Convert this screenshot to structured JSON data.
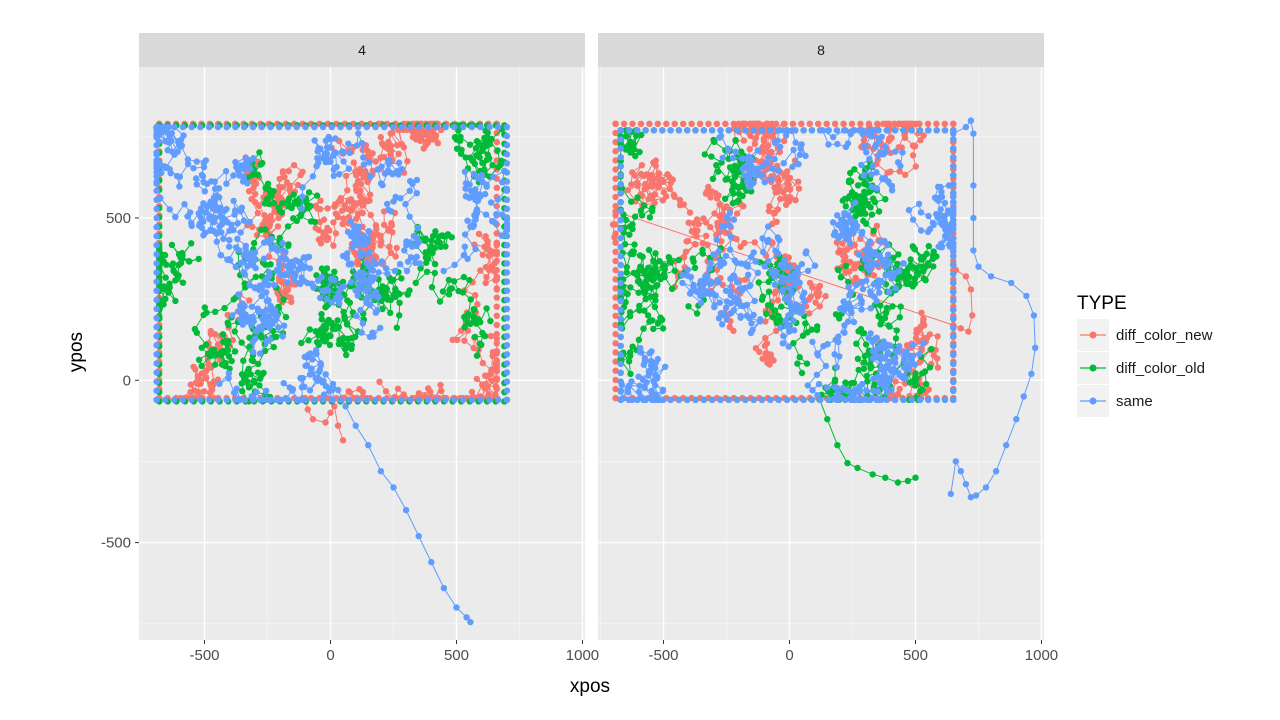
{
  "chart_data": {
    "type": "scatter",
    "xlabel": "xpos",
    "ylabel": "ypos",
    "xlim": [
      -760,
      1010
    ],
    "ylim": [
      -800,
      965
    ],
    "x_ticks": [
      -500,
      0,
      500,
      1000
    ],
    "y_ticks": [
      -500,
      0,
      500
    ],
    "grid": true,
    "legend_title": "TYPE",
    "legend_position": "right",
    "series_colors": {
      "diff_color_new": "#F8766D",
      "diff_color_old": "#00BA38",
      "same": "#619CFF"
    },
    "series_order": [
      "diff_color_new",
      "diff_color_old",
      "same"
    ],
    "panels": [
      {
        "label": "4",
        "series": [
          {
            "name": "diff_color_new",
            "bounding_region": {
              "x": [
                -680,
                660
              ],
              "y": [
                -55,
                790
              ]
            },
            "extra_points": [
              [
                -100,
                -55
              ],
              [
                -90,
                -90
              ],
              [
                -70,
                -120
              ],
              [
                -20,
                -130
              ],
              [
                0,
                -100
              ],
              [
                15,
                -80
              ],
              [
                30,
                -140
              ],
              [
                50,
                -185
              ]
            ]
          },
          {
            "name": "diff_color_old",
            "bounding_region": {
              "x": [
                -680,
                690
              ],
              "y": [
                -65,
                785
              ]
            },
            "extra_points": []
          },
          {
            "name": "same",
            "bounding_region": {
              "x": [
                -690,
                700
              ],
              "y": [
                -60,
                780
              ]
            },
            "extra_points": [
              [
                30,
                -30
              ],
              [
                60,
                -80
              ],
              [
                100,
                -140
              ],
              [
                150,
                -200
              ],
              [
                200,
                -280
              ],
              [
                250,
                -330
              ],
              [
                300,
                -400
              ],
              [
                350,
                -480
              ],
              [
                400,
                -560
              ],
              [
                450,
                -640
              ],
              [
                500,
                -700
              ],
              [
                540,
                -730
              ],
              [
                555,
                -745
              ]
            ]
          }
        ]
      },
      {
        "label": "8",
        "series": [
          {
            "name": "diff_color_new",
            "bounding_region": {
              "x": [
                -690,
                650
              ],
              "y": [
                -55,
                790
              ]
            },
            "extra_points": [
              [
                660,
                340
              ],
              [
                700,
                320
              ],
              [
                720,
                280
              ],
              [
                725,
                200
              ],
              [
                710,
                150
              ],
              [
                680,
                160
              ],
              [
                650,
                170
              ],
              [
                -690,
                520
              ],
              [
                -700,
                480
              ],
              [
                -695,
                440
              ]
            ]
          },
          {
            "name": "diff_color_old",
            "bounding_region": {
              "x": [
                -670,
                650
              ],
              "y": [
                -60,
                770
              ]
            },
            "extra_points": [
              [
                120,
                -60
              ],
              [
                150,
                -120
              ],
              [
                190,
                -200
              ],
              [
                230,
                -255
              ],
              [
                270,
                -270
              ],
              [
                330,
                -290
              ],
              [
                380,
                -300
              ],
              [
                430,
                -315
              ],
              [
                470,
                -310
              ],
              [
                500,
                -300
              ]
            ]
          },
          {
            "name": "same",
            "bounding_region": {
              "x": [
                -670,
                650
              ],
              "y": [
                -60,
                770
              ]
            },
            "extra_points": [
              [
                650,
                760
              ],
              [
                700,
                780
              ],
              [
                720,
                800
              ],
              [
                730,
                760
              ],
              [
                730,
                600
              ],
              [
                730,
                500
              ],
              [
                730,
                400
              ],
              [
                750,
                350
              ],
              [
                800,
                320
              ],
              [
                880,
                300
              ],
              [
                940,
                260
              ],
              [
                970,
                200
              ],
              [
                975,
                100
              ],
              [
                960,
                20
              ],
              [
                930,
                -50
              ],
              [
                900,
                -120
              ],
              [
                860,
                -200
              ],
              [
                820,
                -280
              ],
              [
                780,
                -330
              ],
              [
                740,
                -355
              ],
              [
                720,
                -360
              ],
              [
                700,
                -320
              ],
              [
                680,
                -280
              ],
              [
                660,
                -250
              ],
              [
                640,
                -350
              ]
            ]
          }
        ]
      }
    ]
  }
}
